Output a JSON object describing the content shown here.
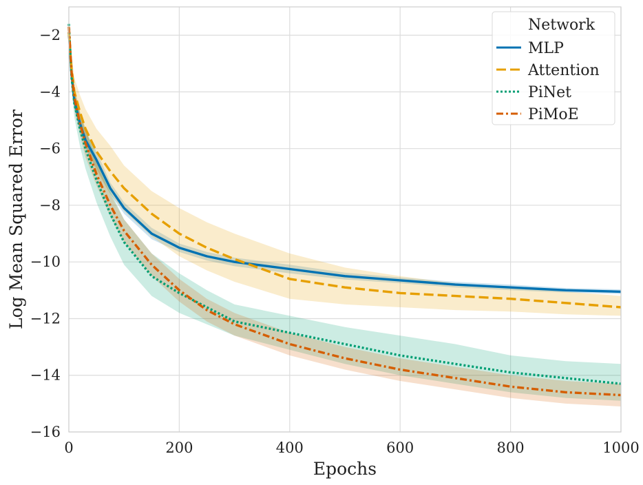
{
  "chart_data": {
    "type": "line",
    "title": "",
    "xlabel": "Epochs",
    "ylabel": "Log Mean Squared Error",
    "xlim": [
      0,
      1000
    ],
    "ylim": [
      -16,
      -1
    ],
    "xticks": [
      0,
      200,
      400,
      600,
      800,
      1000
    ],
    "yticks": [
      -16,
      -14,
      -12,
      -10,
      -8,
      -6,
      -4,
      -2
    ],
    "x_tick_labels": [
      "0",
      "200",
      "400",
      "600",
      "800",
      "1000"
    ],
    "y_tick_labels": [
      "−16",
      "−14",
      "−12",
      "−10",
      "−8",
      "−6",
      "−4",
      "−2"
    ],
    "grid": true,
    "legend": {
      "title": "Network",
      "placement": "top-right"
    },
    "x": [
      0,
      5,
      10,
      20,
      30,
      50,
      75,
      100,
      150,
      200,
      250,
      300,
      400,
      500,
      600,
      700,
      800,
      900,
      1000
    ],
    "series": [
      {
        "name": "MLP",
        "style": "solid",
        "color": "#0072b2",
        "values": [
          -1.9,
          -3.4,
          -4.3,
          -5.1,
          -5.7,
          -6.4,
          -7.4,
          -8.1,
          -9.0,
          -9.5,
          -9.8,
          -10.0,
          -10.25,
          -10.5,
          -10.65,
          -10.8,
          -10.9,
          -11.0,
          -11.05
        ],
        "band_lower": [
          -2.1,
          -3.7,
          -4.6,
          -5.4,
          -6.0,
          -6.7,
          -7.6,
          -8.3,
          -9.2,
          -9.65,
          -9.95,
          -10.15,
          -10.4,
          -10.62,
          -10.75,
          -10.9,
          -11.0,
          -11.08,
          -11.13
        ],
        "band_upper": [
          -1.7,
          -3.1,
          -4.0,
          -4.8,
          -5.4,
          -6.1,
          -7.2,
          -7.9,
          -8.8,
          -9.35,
          -9.65,
          -9.85,
          -10.1,
          -10.38,
          -10.55,
          -10.7,
          -10.8,
          -10.92,
          -10.97
        ]
      },
      {
        "name": "Attention",
        "style": "dashed",
        "color": "#e69f00",
        "values": [
          -1.9,
          -3.2,
          -4.0,
          -4.7,
          -5.3,
          -6.1,
          -6.8,
          -7.4,
          -8.3,
          -9.0,
          -9.5,
          -9.9,
          -10.6,
          -10.9,
          -11.1,
          -11.2,
          -11.3,
          -11.45,
          -11.6
        ],
        "band_lower": [
          -2.2,
          -3.7,
          -4.5,
          -5.3,
          -5.9,
          -6.8,
          -7.6,
          -8.2,
          -9.1,
          -9.8,
          -10.3,
          -10.7,
          -11.3,
          -11.5,
          -11.6,
          -11.7,
          -11.75,
          -11.85,
          -11.9
        ],
        "band_upper": [
          -1.6,
          -2.7,
          -3.5,
          -4.1,
          -4.6,
          -5.3,
          -5.9,
          -6.6,
          -7.5,
          -8.1,
          -8.6,
          -9.0,
          -9.7,
          -10.2,
          -10.5,
          -10.75,
          -10.9,
          -11.05,
          -11.2
        ]
      },
      {
        "name": "PiNet",
        "style": "dotted",
        "color": "#009e73",
        "values": [
          -1.6,
          -3.5,
          -4.4,
          -5.3,
          -6.0,
          -7.1,
          -8.3,
          -9.3,
          -10.5,
          -11.1,
          -11.6,
          -12.1,
          -12.5,
          -12.9,
          -13.3,
          -13.6,
          -13.9,
          -14.1,
          -14.3
        ],
        "band_lower": [
          -1.8,
          -3.9,
          -4.9,
          -5.9,
          -6.7,
          -7.9,
          -9.1,
          -10.1,
          -11.2,
          -11.8,
          -12.2,
          -12.6,
          -13.1,
          -13.6,
          -14.0,
          -14.3,
          -14.6,
          -14.8,
          -14.9
        ],
        "band_upper": [
          -1.4,
          -3.1,
          -3.9,
          -4.7,
          -5.3,
          -6.3,
          -7.5,
          -8.5,
          -9.7,
          -10.4,
          -11.0,
          -11.5,
          -11.9,
          -12.3,
          -12.6,
          -12.9,
          -13.3,
          -13.5,
          -13.6
        ]
      },
      {
        "name": "PiMoE",
        "style": "dashdot",
        "color": "#d55e00",
        "values": [
          -1.7,
          -3.3,
          -4.2,
          -5.1,
          -5.8,
          -6.9,
          -8.0,
          -8.9,
          -10.1,
          -11.0,
          -11.7,
          -12.2,
          -12.9,
          -13.4,
          -13.8,
          -14.1,
          -14.4,
          -14.6,
          -14.7
        ],
        "band_lower": [
          -1.9,
          -3.6,
          -4.6,
          -5.5,
          -6.3,
          -7.3,
          -8.4,
          -9.3,
          -10.5,
          -11.4,
          -12.1,
          -12.6,
          -13.3,
          -13.8,
          -14.2,
          -14.5,
          -14.8,
          -15.0,
          -15.1
        ],
        "band_upper": [
          -1.5,
          -3.0,
          -3.8,
          -4.7,
          -5.3,
          -6.5,
          -7.6,
          -8.5,
          -9.7,
          -10.6,
          -11.3,
          -11.8,
          -12.5,
          -13.0,
          -13.4,
          -13.7,
          -14.0,
          -14.2,
          -14.3
        ]
      }
    ]
  }
}
